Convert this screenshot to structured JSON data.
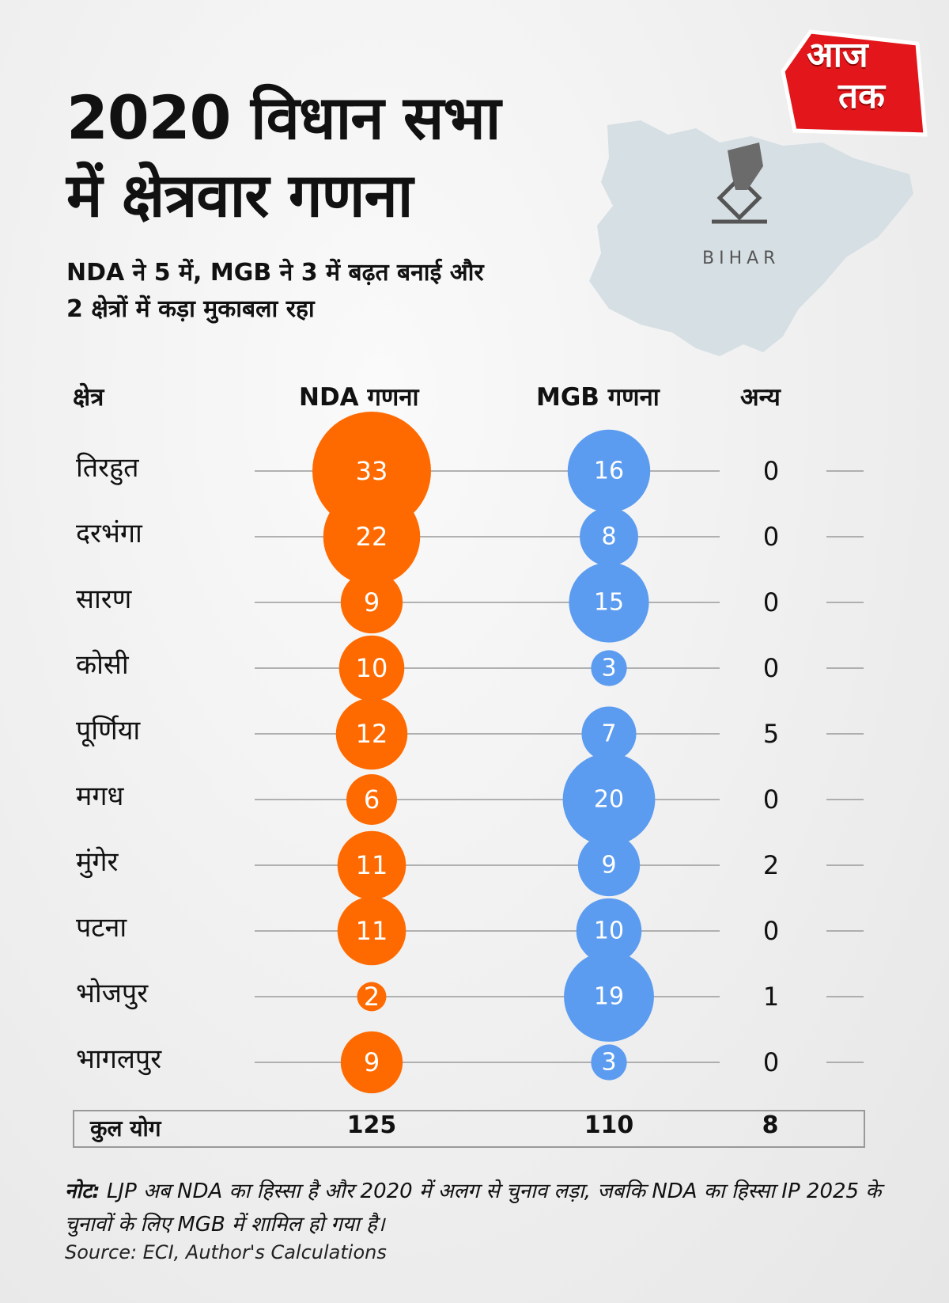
{
  "brand": {
    "logo_line1": "आज",
    "logo_line2": "तक",
    "logo_color": "#e3161b"
  },
  "header": {
    "title_line1": "2020 विधान सभा",
    "title_line2": "में क्षेत्रवार गणना",
    "subtitle_line1": "NDA ने 5 में, MGB ने 3 में बढ़त बनाई और",
    "subtitle_line2": "2 क्षेत्रों में कड़ा मुकाबला रहा"
  },
  "map": {
    "label": "BIHAR",
    "fill": "#d6dfe4",
    "icon": "ballot-box-icon"
  },
  "colors": {
    "nda": "#ff6a00",
    "mgb": "#5b9cf0",
    "line": "#9a9a9a"
  },
  "chart_data": {
    "type": "bubble-table",
    "columns": {
      "region": "क्षेत्र",
      "nda": "NDA गणना",
      "mgb": "MGB गणना",
      "other": "अन्य"
    },
    "regions": [
      "तिरहुत",
      "दरभंगा",
      "सारण",
      "कोसी",
      "पूर्णिया",
      "मगध",
      "मुंगेर",
      "पटना",
      "भोजपुर",
      "भागलपुर"
    ],
    "series": [
      {
        "name": "NDA गणना",
        "values": [
          33,
          22,
          9,
          10,
          12,
          6,
          11,
          11,
          2,
          9
        ]
      },
      {
        "name": "MGB गणना",
        "values": [
          16,
          8,
          15,
          3,
          7,
          20,
          9,
          10,
          19,
          3
        ]
      },
      {
        "name": "अन्य",
        "values": [
          0,
          0,
          0,
          0,
          5,
          0,
          2,
          0,
          1,
          0
        ]
      }
    ],
    "totals": {
      "label": "कुल योग",
      "nda": "125",
      "mgb": "110",
      "other": "8"
    }
  },
  "footer": {
    "note_label": "नोट:",
    "note_text": " LJP अब NDA का हिस्सा है और 2020 में अलग से चुनाव लड़ा, जबकि NDA का हिस्सा IP 2025 के चुनावों के लिए MGB में शामिल हो गया है।",
    "source": "Source: ECI, Author's Calculations"
  }
}
